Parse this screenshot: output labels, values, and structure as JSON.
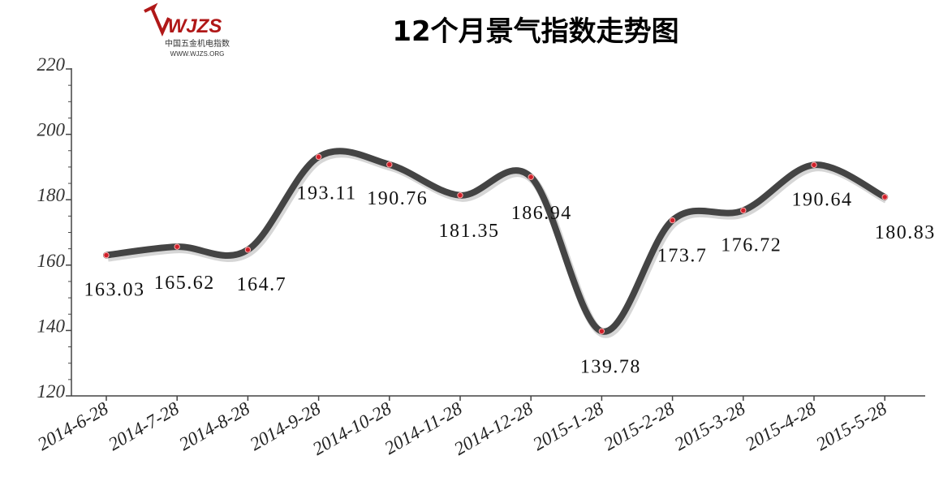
{
  "logo": {
    "mark": "WJZS",
    "name": "中国五金机电指数",
    "url": "WWW.WJZS.ORG"
  },
  "chart_data": {
    "type": "line",
    "title": "12个月景气指数走势图",
    "categories": [
      "2014-6-28",
      "2014-7-28",
      "2014-8-28",
      "2014-9-28",
      "2014-10-28",
      "2014-11-28",
      "2014-12-28",
      "2015-1-28",
      "2015-2-28",
      "2015-3-28",
      "2015-4-28",
      "2015-5-28"
    ],
    "values": [
      163.03,
      165.62,
      164.7,
      193.11,
      190.76,
      181.35,
      186.94,
      139.78,
      173.7,
      176.72,
      190.64,
      180.83
    ],
    "color": "#444444",
    "marker_color": "#d0202a",
    "ylim": [
      120,
      220
    ],
    "yticks": [
      120,
      140,
      160,
      180,
      200,
      220
    ]
  }
}
